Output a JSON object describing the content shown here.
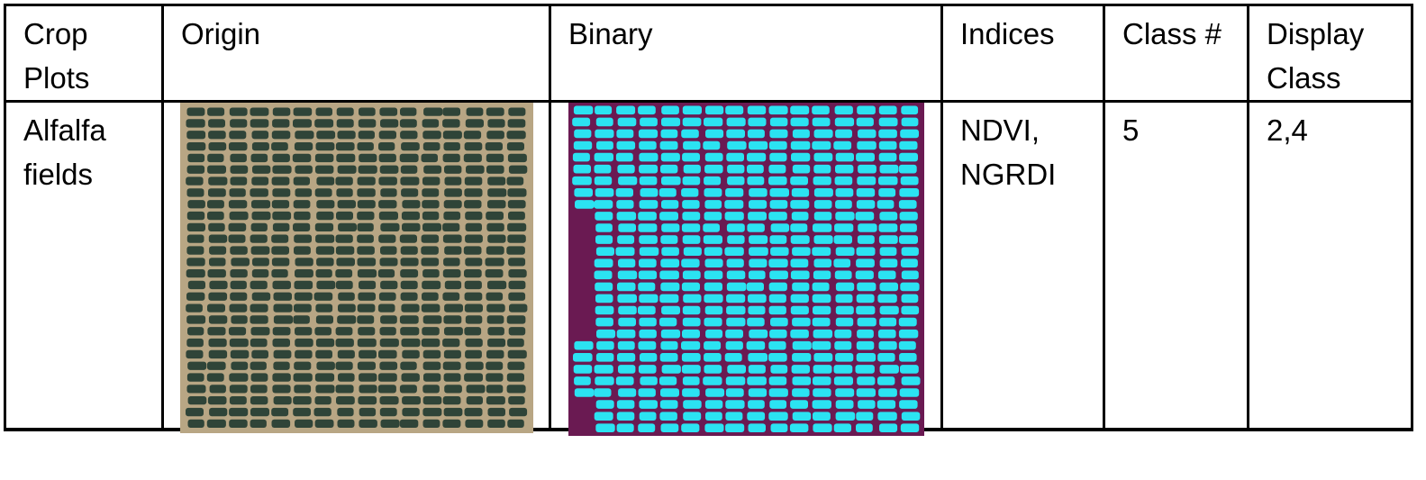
{
  "table": {
    "headers": [
      "Crop\nPlots",
      "Origin",
      "Binary",
      "Indices",
      "Class #",
      "Display\nClass"
    ],
    "rows": [
      {
        "crop_plots": "Alfalfa\nfields",
        "indices": "NDVI,\nNGRDI",
        "class_count": "5",
        "display_class": "2,4"
      }
    ]
  },
  "images": {
    "origin": {
      "background_color": "#b8a684",
      "plot_color": "#2f4438",
      "columns": 16,
      "rows": 28
    },
    "binary": {
      "background_color": "#6a1a52",
      "plot_color": "#2be3f2",
      "columns": 16,
      "rows": 28
    }
  }
}
